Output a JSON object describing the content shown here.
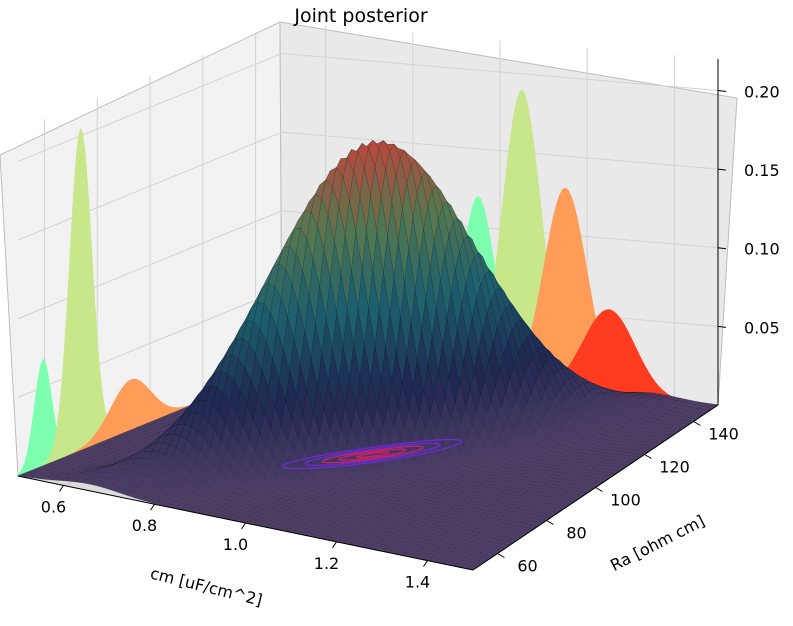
{
  "chart_data": {
    "type": "surface3d",
    "title": "Joint posterior",
    "xlabel": "cm [uF/cm^2]",
    "ylabel": "Ra [ohm cm]",
    "zlabel": "",
    "x_ticks": [
      "0.6",
      "0.8",
      "1.0",
      "1.2",
      "1.4"
    ],
    "y_ticks": [
      "60",
      "80",
      "100",
      "120",
      "140"
    ],
    "z_ticks": [
      "0.05",
      "0.10",
      "0.15",
      "0.20"
    ],
    "xlim": [
      0.5,
      1.5
    ],
    "ylim": [
      50,
      150
    ],
    "zlim": [
      0.0,
      0.22
    ],
    "grid": true,
    "surface": {
      "description": "joint posterior density over (cm, Ra)",
      "peak_cm": 1.0,
      "peak_ra": 100,
      "peak_value": 0.2,
      "correlated": true,
      "colormap": "dark-purple-to-red"
    },
    "marginal_projections": {
      "on_back_wall_cm": [
        {
          "mean": 0.6,
          "sd": 0.035,
          "peak": 0.068,
          "color": "#7dffb0"
        },
        {
          "mean": 0.75,
          "sd": 0.045,
          "peak": 0.205,
          "color": "#c8e68a"
        },
        {
          "mean": 0.95,
          "sd": 0.08,
          "peak": 0.032,
          "color": "#ff9d58"
        }
      ],
      "on_side_wall_ra": [
        {
          "mean": 95,
          "sd": 4,
          "peak": 0.12,
          "color": "#7dffb0"
        },
        {
          "mean": 105,
          "sd": 4.5,
          "peak": 0.19,
          "color": "#c8e68a"
        },
        {
          "mean": 115,
          "sd": 5,
          "peak": 0.13,
          "color": "#ff9d58"
        },
        {
          "mean": 125,
          "sd": 6,
          "peak": 0.055,
          "color": "#ff3c20"
        }
      ]
    },
    "contour_levels": [
      0.04,
      0.08,
      0.12,
      0.16,
      0.19
    ]
  }
}
